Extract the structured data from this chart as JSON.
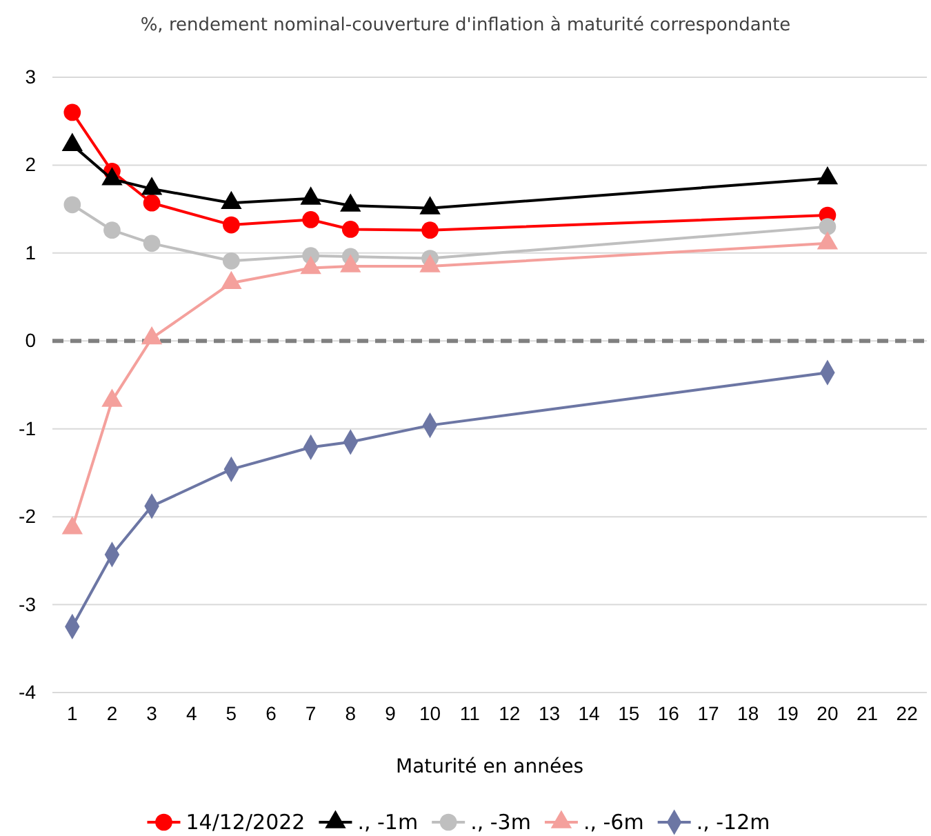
{
  "chart_data": {
    "type": "line",
    "title": "%, rendement nominal-couverture d'inflation à maturité correspondante",
    "xlabel": "Maturité en années",
    "x": [
      1,
      2,
      3,
      5,
      7,
      8,
      10,
      20
    ],
    "series": [
      {
        "name": "14/12/2022",
        "color": "#ff0000",
        "marker": "circle",
        "values": [
          2.6,
          1.93,
          1.57,
          1.32,
          1.38,
          1.27,
          1.26,
          1.43
        ]
      },
      {
        "name": "., -1m",
        "color": "#000000",
        "marker": "triangle",
        "values": [
          2.23,
          1.84,
          1.73,
          1.57,
          1.62,
          1.54,
          1.51,
          1.85
        ]
      },
      {
        "name": "., -3m",
        "color": "#bfbfbf",
        "marker": "circle",
        "values": [
          1.55,
          1.26,
          1.11,
          0.91,
          0.97,
          0.96,
          0.94,
          1.3
        ]
      },
      {
        "name": "., -6m",
        "color": "#f4a09c",
        "marker": "triangle",
        "values": [
          -2.13,
          -0.68,
          0.03,
          0.66,
          0.83,
          0.85,
          0.85,
          1.11
        ]
      },
      {
        "name": "., -12m",
        "color": "#6c76a4",
        "marker": "diamond",
        "values": [
          -3.25,
          -2.43,
          -1.88,
          -1.46,
          -1.21,
          -1.15,
          -0.96,
          -0.36
        ]
      }
    ],
    "xlim": [
      0.5,
      22.5
    ],
    "xticks": [
      1,
      2,
      3,
      4,
      5,
      6,
      7,
      8,
      9,
      10,
      11,
      12,
      13,
      14,
      15,
      16,
      17,
      18,
      19,
      20,
      21,
      22
    ],
    "ylim": [
      -4,
      3
    ],
    "yticks": [
      -4,
      -3,
      -2,
      -1,
      0,
      1,
      2,
      3
    ],
    "ref_lines": [
      {
        "axis": "y",
        "value": 0,
        "color": "#808080",
        "line_style": "dashed"
      }
    ],
    "grid": "y",
    "legend": "bottom",
    "line_style": "solid"
  }
}
